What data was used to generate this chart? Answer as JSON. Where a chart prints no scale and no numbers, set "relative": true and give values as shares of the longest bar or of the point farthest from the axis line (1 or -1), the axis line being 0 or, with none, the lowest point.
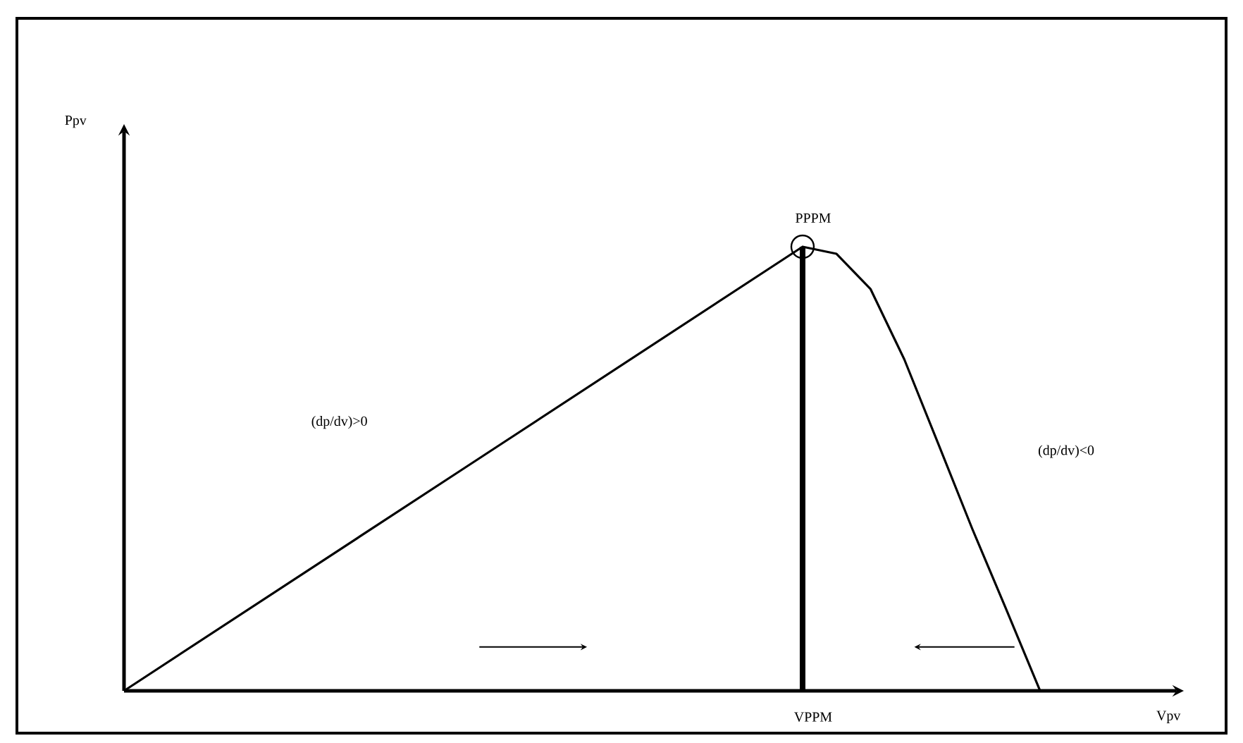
{
  "chart_data": {
    "type": "line",
    "relative": true,
    "categories": [
      null,
      null,
      null,
      null,
      null,
      null,
      null,
      null,
      null,
      null,
      null,
      null,
      null,
      null,
      null,
      null,
      null,
      null,
      null,
      null,
      null,
      null,
      null,
      null,
      null,
      null,
      null,
      null
    ],
    "series": [
      {
        "color": "#000000",
        "values": [
          0,
          0.05,
          0.1,
          0.15,
          0.2,
          0.25,
          0.3,
          0.35,
          0.4,
          0.45,
          0.5,
          0.55,
          0.6,
          0.65,
          0.7,
          0.75,
          0.8,
          0.85,
          0.9,
          0.95,
          1,
          0.984,
          0.905,
          0.746,
          0.556,
          0.365,
          0.184,
          0
        ]
      }
    ],
    "annotations": [
      "Ppv",
      "Vpv",
      "PPPM",
      "VPPM",
      "(dp/dv)>0",
      "(dp/dv)<0"
    ],
    "marker": "none",
    "line_style": "solid",
    "grid": false
  }
}
